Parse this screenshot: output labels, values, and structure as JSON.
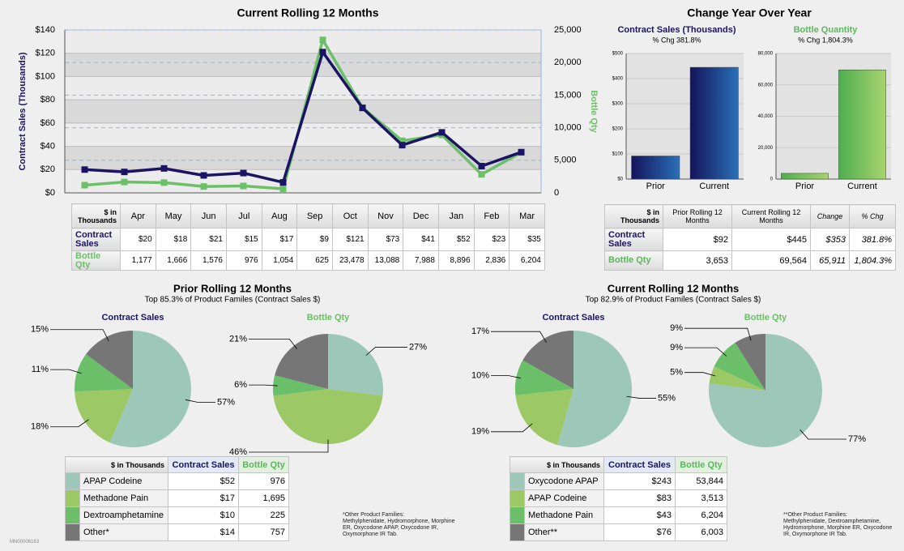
{
  "chart_data": [
    {
      "type": "line",
      "title": "Current Rolling 12 Months",
      "y_label": "Contract Sales (Thousands)",
      "y2_label": "Bottle Qty",
      "table_header": "$ in Thousands",
      "categories": [
        "Apr",
        "May",
        "Jun",
        "Jul",
        "Aug",
        "Sep",
        "Oct",
        "Nov",
        "Dec",
        "Jan",
        "Feb",
        "Mar"
      ],
      "series": [
        {
          "name": "Contract Sales",
          "color": "#1b1464",
          "values": [
            20,
            18,
            21,
            15,
            17,
            9,
            121,
            73,
            41,
            52,
            23,
            35
          ],
          "value_labels": [
            "$20",
            "$18",
            "$21",
            "$15",
            "$17",
            "$9",
            "$121",
            "$73",
            "$41",
            "$52",
            "$23",
            "$35"
          ]
        },
        {
          "name": "Bottle Qty",
          "color": "#6cc067",
          "axis": "y2",
          "values": [
            1177,
            1666,
            1576,
            976,
            1054,
            625,
            23478,
            13088,
            7988,
            8896,
            2836,
            6204
          ],
          "value_labels": [
            "1,177",
            "1,666",
            "1,576",
            "976",
            "1,054",
            "625",
            "23,478",
            "13,088",
            "7,988",
            "8,896",
            "2,836",
            "6,204"
          ]
        }
      ],
      "ylim": [
        0,
        140
      ],
      "yticks": [
        {
          "value": 0,
          "label": "$0"
        },
        {
          "value": 20,
          "label": "$20"
        },
        {
          "value": 40,
          "label": "$40"
        },
        {
          "value": 60,
          "label": "$60"
        },
        {
          "value": 80,
          "label": "$80"
        },
        {
          "value": 100,
          "label": "$100"
        },
        {
          "value": 120,
          "label": "$120"
        },
        {
          "value": 140,
          "label": "$140"
        }
      ],
      "y2lim": [
        0,
        25000
      ],
      "y2ticks": [
        0,
        {
          "value": 5000,
          "label": "5,000"
        },
        {
          "value": 10000,
          "label": "10,000"
        },
        {
          "value": 15000,
          "label": "15,000"
        },
        {
          "value": 20000,
          "label": "20,000"
        },
        {
          "value": 25000,
          "label": "25,000"
        }
      ]
    },
    {
      "type": "bar",
      "title": "Change Year Over Year",
      "subtitle": "Contract Sales (Thousands)",
      "note": "% Chg 381.8%",
      "categories": [
        "Prior",
        "Current"
      ],
      "values": [
        92,
        445
      ],
      "value_labels": [
        "$92",
        "$445"
      ],
      "color": "#1b1464",
      "gradient": [
        "#14145a",
        "#2a70b8"
      ],
      "ylim": [
        0,
        500
      ],
      "yticks": [
        {
          "value": 0,
          "label": "$0"
        },
        {
          "value": 100,
          "label": "$100"
        },
        {
          "value": 200,
          "label": "$200"
        },
        {
          "value": 300,
          "label": "$300"
        },
        {
          "value": 400,
          "label": "$400"
        },
        {
          "value": 500,
          "label": "$500"
        }
      ]
    },
    {
      "type": "bar",
      "subtitle": "Bottle Quantity",
      "note": "% Chg 1,804.3%",
      "categories": [
        "Prior",
        "Current"
      ],
      "values": [
        3653,
        69564
      ],
      "value_labels": [
        "3,653",
        "69,564"
      ],
      "color": "#5cb85c",
      "gradient": [
        "#4fae4f",
        "#a8d46f"
      ],
      "ylim": [
        0,
        80000
      ],
      "yticks": [
        0,
        {
          "value": 20000,
          "label": "20,000"
        },
        {
          "value": 40000,
          "label": "40,000"
        },
        {
          "value": 60000,
          "label": "60,000"
        },
        {
          "value": 80000,
          "label": "80,000"
        }
      ]
    },
    {
      "type": "pie",
      "title": "Contract Sales",
      "values": [
        57,
        18,
        11,
        15
      ],
      "value_labels": [
        "57%",
        "18%",
        "11%",
        "15%"
      ],
      "colors": [
        "#9cc7b9",
        "#9dc866",
        "#6cbf69",
        "#767676"
      ]
    },
    {
      "type": "pie",
      "title": "Bottle Qty",
      "values": [
        27,
        46,
        6,
        21
      ],
      "value_labels": [
        "27%",
        "46%",
        "6%",
        "21%"
      ],
      "colors": [
        "#9cc7b9",
        "#9dc866",
        "#6cbf69",
        "#767676"
      ]
    },
    {
      "type": "pie",
      "title": "Contract Sales",
      "values": [
        55,
        19,
        10,
        17
      ],
      "value_labels": [
        "55%",
        "19%",
        "10%",
        "17%"
      ],
      "colors": [
        "#9cc7b9",
        "#9dc866",
        "#6cbf69",
        "#767676"
      ]
    },
    {
      "type": "pie",
      "title": "Bottle Qty",
      "values": [
        77,
        5,
        9,
        9
      ],
      "value_labels": [
        "77%",
        "5%",
        "9%",
        "9%"
      ],
      "colors": [
        "#9cc7b9",
        "#9dc866",
        "#6cbf69",
        "#767676"
      ]
    }
  ],
  "yoy_table": {
    "header_label": "$ in Thousands",
    "columns": [
      "Prior Rolling 12 Months",
      "Current Rolling 12 Months",
      "Change",
      "% Chg"
    ],
    "rows": [
      {
        "label": "Contract Sales",
        "change": "$353",
        "pct": "381.8%"
      },
      {
        "label": "Bottle Qty",
        "change": "65,911",
        "pct": "1,804.3%"
      }
    ]
  },
  "prior": {
    "title": "Prior Rolling 12 Months",
    "subtitle": "Top 85.3% of Product Familes (Contract Sales $)",
    "table": {
      "header": [
        "$ in Thousands",
        "Contract Sales",
        "Bottle Qty"
      ],
      "rows": [
        [
          "APAP Codeine",
          "$52",
          "976"
        ],
        [
          "Methadone Pain",
          "$17",
          "1,695"
        ],
        [
          "Dextroamphetamine",
          "$10",
          "225"
        ],
        [
          "Other*",
          "$14",
          "757"
        ]
      ]
    },
    "footnote": [
      "*Other Product Families:",
      "Methylphenidate, Hydromorphone, Morphine",
      "ER, Oxycodone APAP, Oxycodone IR,",
      "Oxymorphone IR Tab."
    ]
  },
  "current": {
    "title": "Current Rolling 12 Months",
    "subtitle": "Top 82.9% of Product Familes (Contract Sales $)",
    "table": {
      "header": [
        "$ in Thousands",
        "Contract Sales",
        "Bottle Qty"
      ],
      "rows": [
        [
          "Oxycodone APAP",
          "$243",
          "53,844"
        ],
        [
          "APAP Codeine",
          "$83",
          "3,513"
        ],
        [
          "Methadone Pain",
          "$43",
          "6,204"
        ],
        [
          "Other**",
          "$76",
          "6,003"
        ]
      ]
    },
    "footnote": [
      "**Other Product Families:",
      "Methylphenidate, Dextroamphetamine,",
      "Hydromorphone, Morphine ER, Oxycodone",
      "IR, Oxymorphone IR Tab."
    ]
  },
  "doc_id": "MN00006163"
}
